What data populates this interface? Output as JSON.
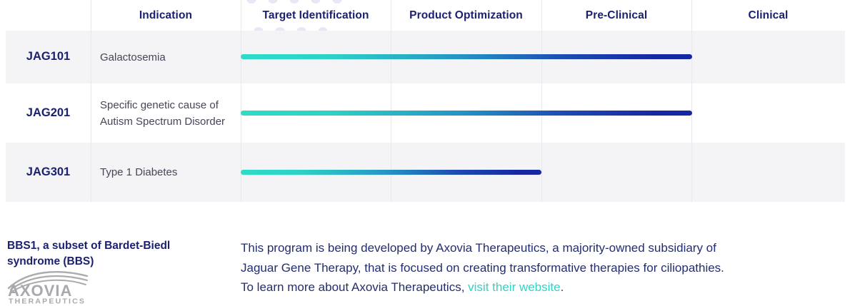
{
  "header": {
    "columns": [
      "Indication",
      "Target Identification",
      "Product Optimization",
      "Pre-Clinical",
      "Clinical"
    ]
  },
  "chart_data": {
    "type": "gantt",
    "stage_columns": [
      "Target Identification",
      "Product Optimization",
      "Pre-Clinical",
      "Clinical"
    ],
    "rows": [
      {
        "program": "JAG101",
        "indication_lines": [
          "Galactosemia"
        ],
        "stages_completed": 3,
        "progress_through": "Pre-Clinical"
      },
      {
        "program": "JAG201",
        "indication_lines": [
          "Specific genetic cause of",
          "Autism Spectrum Disorder"
        ],
        "stages_completed": 3,
        "progress_through": "Pre-Clinical"
      },
      {
        "program": "JAG301",
        "indication_lines": [
          "Type 1 Diabetes"
        ],
        "stages_completed": 2,
        "progress_through": "Product Optimization"
      }
    ],
    "bar_gradient": [
      "#2EDCC6",
      "#1727A3"
    ],
    "legend_position": "none",
    "grid": "vertical-column-dividers"
  },
  "footnote": {
    "heading_lines": [
      "BBS1, a subset of Bardet-Biedl",
      "syndrome (BBS)"
    ]
  },
  "logo": {
    "brand": "AXOVIA",
    "subtext": "THERAPEUTICS"
  },
  "about": {
    "line1": "This program is being developed by Axovia Therapeutics, a majority-owned subsidiary of",
    "line2": "Jaguar Gene Therapy, that is focused on creating transformative therapies for ciliopathies.",
    "line3_prefix": "To learn more about Axovia Therapeutics, ",
    "link_label": "visit their website",
    "line3_suffix": "."
  },
  "colors": {
    "navy_text": "#1b2070",
    "body_text": "#45465a",
    "row_stripe": "#f4f4f6",
    "bar_start_teal": "#2EDCC6",
    "bar_end_blue": "#1727A3",
    "link_teal": "#2fd4c5",
    "period_red": "#8e231c",
    "logo_gray": "#a9a9ad",
    "dot_lavender": "#e8e8f4"
  }
}
